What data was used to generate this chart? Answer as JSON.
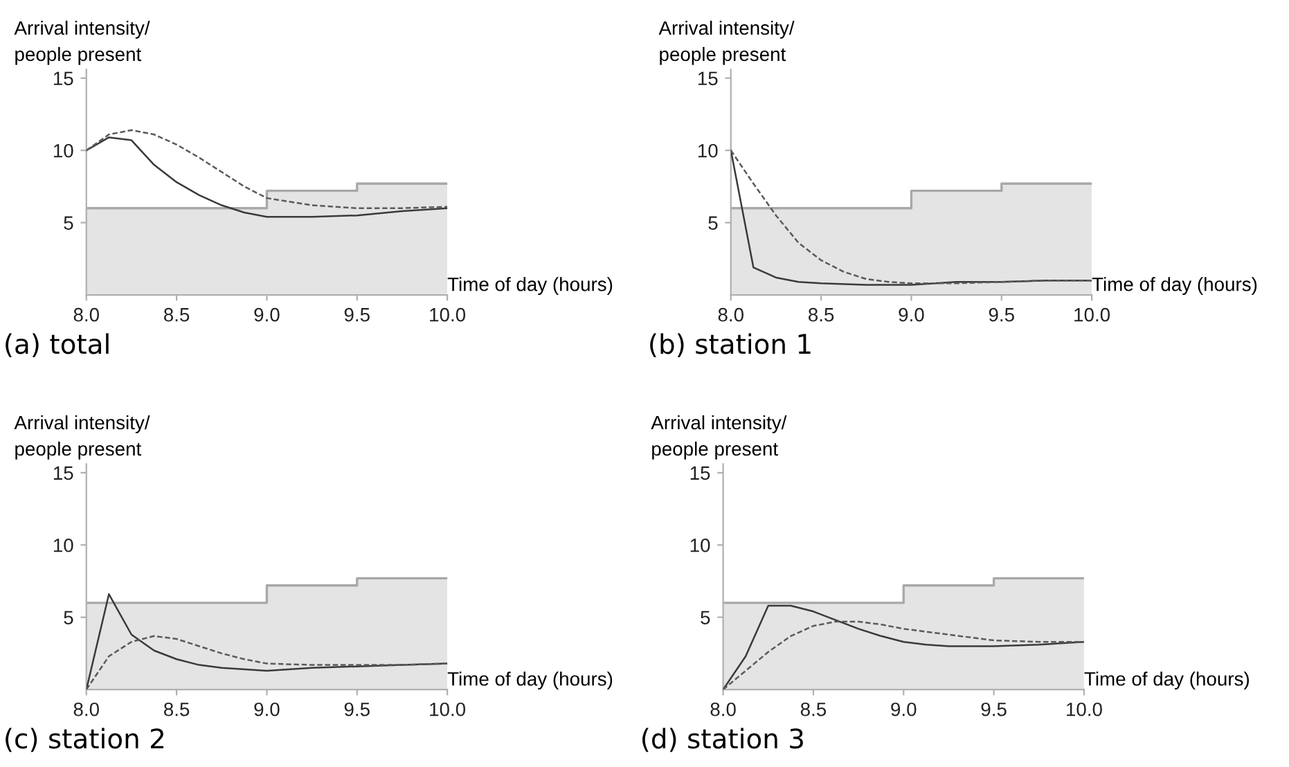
{
  "chart_data": [
    {
      "type": "line",
      "ylabel": "Arrival intensity/\npeople present",
      "xlabel": "Time of day (hours)",
      "annotations": [
        "(a) total"
      ],
      "xlim": [
        8,
        10
      ],
      "xticks": [
        {
          "value": 8,
          "label": "8.0"
        },
        {
          "value": 8.5,
          "label": "8.5"
        },
        {
          "value": 9,
          "label": "9.0"
        },
        {
          "value": 9.5,
          "label": "9.5"
        },
        {
          "value": 10,
          "label": "10.0"
        }
      ],
      "ylim": [
        0,
        15.6
      ],
      "yticks": [
        5,
        10,
        15
      ],
      "grid": false,
      "legend": false,
      "series": [
        {
          "type": "area",
          "color": "#a8a8a8",
          "x": [
            8,
            9,
            9,
            9.5,
            9.5,
            10
          ],
          "values": [
            6,
            6,
            7.2,
            7.2,
            7.7,
            7.7
          ]
        },
        {
          "color": "#3a3a3a",
          "line_style": "solid",
          "x": [
            8,
            8.125,
            8.25,
            8.375,
            8.5,
            8.625,
            8.75,
            8.875,
            9,
            9.25,
            9.5,
            9.75,
            10
          ],
          "values": [
            10,
            10.9,
            10.7,
            9.0,
            7.8,
            6.9,
            6.2,
            5.7,
            5.4,
            5.4,
            5.5,
            5.8,
            6.0
          ]
        },
        {
          "color": "#5a5a5a",
          "line_style": "dashed",
          "x": [
            8,
            8.125,
            8.25,
            8.375,
            8.5,
            8.625,
            8.75,
            8.875,
            9,
            9.25,
            9.5,
            9.75,
            10
          ],
          "values": [
            10,
            11.1,
            11.4,
            11.1,
            10.4,
            9.5,
            8.5,
            7.5,
            6.7,
            6.2,
            6.0,
            6.0,
            6.1
          ]
        }
      ]
    },
    {
      "type": "line",
      "ylabel": "Arrival intensity/\npeople present",
      "xlabel": "Time of day (hours)",
      "annotations": [
        "(b) station 1"
      ],
      "xlim": [
        8,
        10
      ],
      "xticks": [
        {
          "value": 8,
          "label": "8.0"
        },
        {
          "value": 8.5,
          "label": "8.5"
        },
        {
          "value": 9,
          "label": "9.0"
        },
        {
          "value": 9.5,
          "label": "9.5"
        },
        {
          "value": 10,
          "label": "10.0"
        }
      ],
      "ylim": [
        0,
        15.6
      ],
      "yticks": [
        5,
        10,
        15
      ],
      "grid": false,
      "legend": false,
      "series": [
        {
          "type": "area",
          "color": "#a8a8a8",
          "x": [
            8,
            9,
            9,
            9.5,
            9.5,
            10
          ],
          "values": [
            6,
            6,
            7.2,
            7.2,
            7.7,
            7.7
          ]
        },
        {
          "color": "#3a3a3a",
          "line_style": "solid",
          "x": [
            8,
            8.125,
            8.25,
            8.375,
            8.5,
            8.75,
            9,
            9.25,
            9.5,
            9.75,
            10
          ],
          "values": [
            10,
            1.9,
            1.2,
            0.9,
            0.8,
            0.7,
            0.7,
            0.9,
            0.9,
            1.0,
            1.0
          ]
        },
        {
          "color": "#5a5a5a",
          "line_style": "dashed",
          "x": [
            8,
            8.125,
            8.25,
            8.375,
            8.5,
            8.625,
            8.75,
            8.875,
            9,
            9.25,
            9.5,
            9.75,
            10
          ],
          "values": [
            10,
            7.7,
            5.5,
            3.6,
            2.4,
            1.6,
            1.1,
            0.9,
            0.8,
            0.8,
            0.9,
            1.0,
            1.0
          ]
        }
      ]
    },
    {
      "type": "line",
      "ylabel": "Arrival intensity/\npeople present",
      "xlabel": "Time of day (hours)",
      "annotations": [
        "(c) station 2"
      ],
      "xlim": [
        8,
        10
      ],
      "xticks": [
        {
          "value": 8,
          "label": "8.0"
        },
        {
          "value": 8.5,
          "label": "8.5"
        },
        {
          "value": 9,
          "label": "9.0"
        },
        {
          "value": 9.5,
          "label": "9.5"
        },
        {
          "value": 10,
          "label": "10.0"
        }
      ],
      "ylim": [
        0,
        15.6
      ],
      "yticks": [
        5,
        10,
        15
      ],
      "grid": false,
      "legend": false,
      "series": [
        {
          "type": "area",
          "color": "#a8a8a8",
          "x": [
            8,
            9,
            9,
            9.5,
            9.5,
            10
          ],
          "values": [
            6,
            6,
            7.2,
            7.2,
            7.7,
            7.7
          ]
        },
        {
          "color": "#3a3a3a",
          "line_style": "solid",
          "x": [
            8,
            8.125,
            8.25,
            8.375,
            8.5,
            8.625,
            8.75,
            9,
            9.25,
            9.5,
            9.75,
            10
          ],
          "values": [
            0,
            6.6,
            3.8,
            2.7,
            2.1,
            1.7,
            1.5,
            1.3,
            1.5,
            1.6,
            1.7,
            1.8
          ]
        },
        {
          "color": "#5a5a5a",
          "line_style": "dashed",
          "x": [
            8,
            8.125,
            8.25,
            8.375,
            8.5,
            8.625,
            8.75,
            8.875,
            9,
            9.25,
            9.5,
            9.75,
            10
          ],
          "values": [
            0,
            2.3,
            3.3,
            3.7,
            3.5,
            3.0,
            2.5,
            2.1,
            1.8,
            1.7,
            1.7,
            1.7,
            1.8
          ]
        }
      ]
    },
    {
      "type": "line",
      "ylabel": "Arrival intensity/\npeople present",
      "xlabel": "Time of day (hours)",
      "annotations": [
        "(d) station 3"
      ],
      "xlim": [
        8,
        10
      ],
      "xticks": [
        {
          "value": 8,
          "label": "8.0"
        },
        {
          "value": 8.5,
          "label": "8.5"
        },
        {
          "value": 9,
          "label": "9.0"
        },
        {
          "value": 9.5,
          "label": "9.5"
        },
        {
          "value": 10,
          "label": "10.0"
        }
      ],
      "ylim": [
        0,
        15.6
      ],
      "yticks": [
        5,
        10,
        15
      ],
      "grid": false,
      "legend": false,
      "series": [
        {
          "type": "area",
          "color": "#a8a8a8",
          "x": [
            8,
            9,
            9,
            9.5,
            9.5,
            10
          ],
          "values": [
            6,
            6,
            7.2,
            7.2,
            7.7,
            7.7
          ]
        },
        {
          "color": "#3a3a3a",
          "line_style": "solid",
          "x": [
            8,
            8.125,
            8.25,
            8.375,
            8.5,
            8.625,
            8.75,
            8.875,
            9,
            9.125,
            9.25,
            9.5,
            9.75,
            10
          ],
          "values": [
            0,
            2.3,
            5.8,
            5.8,
            5.4,
            4.8,
            4.2,
            3.7,
            3.3,
            3.1,
            3.0,
            3.0,
            3.1,
            3.3
          ]
        },
        {
          "color": "#5a5a5a",
          "line_style": "dashed",
          "x": [
            8,
            8.125,
            8.25,
            8.375,
            8.5,
            8.625,
            8.75,
            8.875,
            9,
            9.25,
            9.5,
            9.75,
            10
          ],
          "values": [
            0,
            1.3,
            2.6,
            3.7,
            4.4,
            4.7,
            4.7,
            4.5,
            4.2,
            3.8,
            3.4,
            3.3,
            3.3
          ]
        }
      ]
    }
  ]
}
